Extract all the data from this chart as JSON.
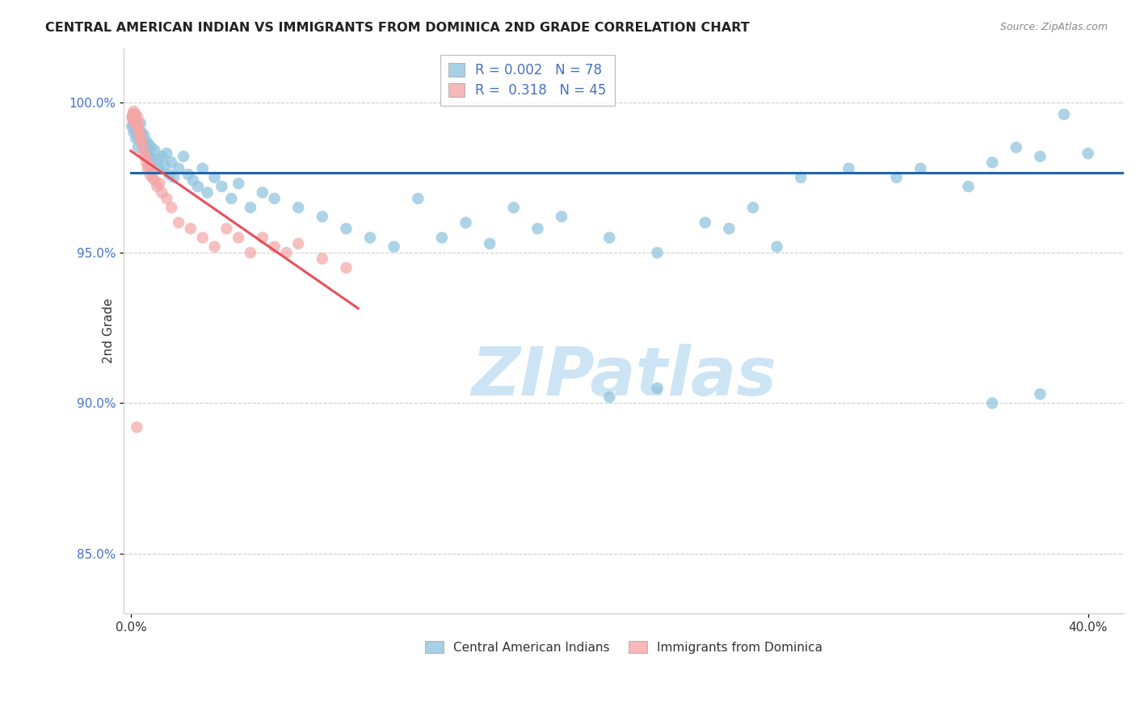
{
  "title": "CENTRAL AMERICAN INDIAN VS IMMIGRANTS FROM DOMINICA 2ND GRADE CORRELATION CHART",
  "source": "Source: ZipAtlas.com",
  "ylabel": "2nd Grade",
  "y_min": 83.0,
  "y_max": 101.8,
  "x_min": -0.3,
  "x_max": 41.5,
  "y_ticks": [
    85.0,
    90.0,
    95.0,
    100.0
  ],
  "x_ticks": [
    0.0,
    40.0
  ],
  "legend_blue_r": "0.002",
  "legend_blue_n": "78",
  "legend_pink_r": "0.318",
  "legend_pink_n": "45",
  "blue_color": "#92c5de",
  "pink_color": "#f4a6a6",
  "trend_blue_color": "#2166ac",
  "trend_pink_color": "#e8505b",
  "blue_x": [
    0.05,
    0.08,
    0.1,
    0.12,
    0.15,
    0.18,
    0.2,
    0.22,
    0.25,
    0.28,
    0.3,
    0.35,
    0.4,
    0.45,
    0.5,
    0.55,
    0.6,
    0.65,
    0.7,
    0.75,
    0.8,
    0.85,
    0.9,
    1.0,
    1.1,
    1.2,
    1.3,
    1.4,
    1.5,
    1.6,
    1.7,
    1.8,
    2.0,
    2.2,
    2.4,
    2.6,
    2.8,
    3.0,
    3.2,
    3.5,
    3.8,
    4.2,
    4.5,
    5.0,
    5.5,
    6.0,
    7.0,
    8.0,
    9.0,
    10.0,
    11.0,
    12.0,
    13.0,
    14.0,
    15.0,
    16.0,
    17.0,
    18.0,
    20.0,
    22.0,
    24.0,
    25.0,
    26.0,
    27.0,
    28.0,
    30.0,
    32.0,
    33.0,
    35.0,
    36.0,
    37.0,
    38.0,
    39.0,
    40.0,
    20.0,
    22.0,
    36.0,
    38.0
  ],
  "blue_y": [
    99.2,
    99.5,
    99.3,
    99.0,
    99.6,
    99.4,
    99.1,
    98.8,
    99.0,
    99.2,
    98.5,
    98.8,
    99.3,
    99.0,
    98.6,
    98.9,
    98.5,
    98.7,
    98.3,
    98.6,
    98.2,
    98.5,
    98.0,
    98.4,
    98.1,
    97.8,
    98.2,
    97.9,
    98.3,
    97.6,
    98.0,
    97.5,
    97.8,
    98.2,
    97.6,
    97.4,
    97.2,
    97.8,
    97.0,
    97.5,
    97.2,
    96.8,
    97.3,
    96.5,
    97.0,
    96.8,
    96.5,
    96.2,
    95.8,
    95.5,
    95.2,
    96.8,
    95.5,
    96.0,
    95.3,
    96.5,
    95.8,
    96.2,
    95.5,
    95.0,
    96.0,
    95.8,
    96.5,
    95.2,
    97.5,
    97.8,
    97.5,
    97.8,
    97.2,
    98.0,
    98.5,
    98.2,
    99.6,
    98.3,
    90.2,
    90.5,
    90.0,
    90.3
  ],
  "pink_x": [
    0.05,
    0.08,
    0.1,
    0.12,
    0.15,
    0.18,
    0.2,
    0.22,
    0.25,
    0.28,
    0.3,
    0.32,
    0.35,
    0.38,
    0.4,
    0.45,
    0.5,
    0.55,
    0.6,
    0.65,
    0.7,
    0.75,
    0.8,
    0.85,
    0.9,
    1.0,
    1.1,
    1.2,
    1.3,
    1.5,
    1.7,
    2.0,
    2.5,
    3.0,
    3.5,
    4.0,
    4.5,
    5.0,
    5.5,
    6.0,
    6.5,
    7.0,
    8.0,
    9.0,
    0.25
  ],
  "pink_y": [
    99.5,
    99.6,
    99.4,
    99.7,
    99.5,
    99.3,
    99.6,
    99.4,
    99.2,
    99.5,
    99.3,
    99.1,
    99.0,
    98.9,
    98.8,
    98.7,
    98.5,
    98.3,
    98.2,
    98.0,
    97.8,
    97.9,
    97.6,
    97.8,
    97.5,
    97.4,
    97.2,
    97.3,
    97.0,
    96.8,
    96.5,
    96.0,
    95.8,
    95.5,
    95.2,
    95.8,
    95.5,
    95.0,
    95.5,
    95.2,
    95.0,
    95.3,
    94.8,
    94.5,
    89.2
  ],
  "blue_trend_x": [
    0.0,
    41.5
  ],
  "blue_trend_y": [
    97.65,
    97.65
  ],
  "pink_trend_x_start": 0.0,
  "pink_trend_x_end": 9.5,
  "watermark_text": "ZIPatlas",
  "watermark_color": "#cde4f5"
}
